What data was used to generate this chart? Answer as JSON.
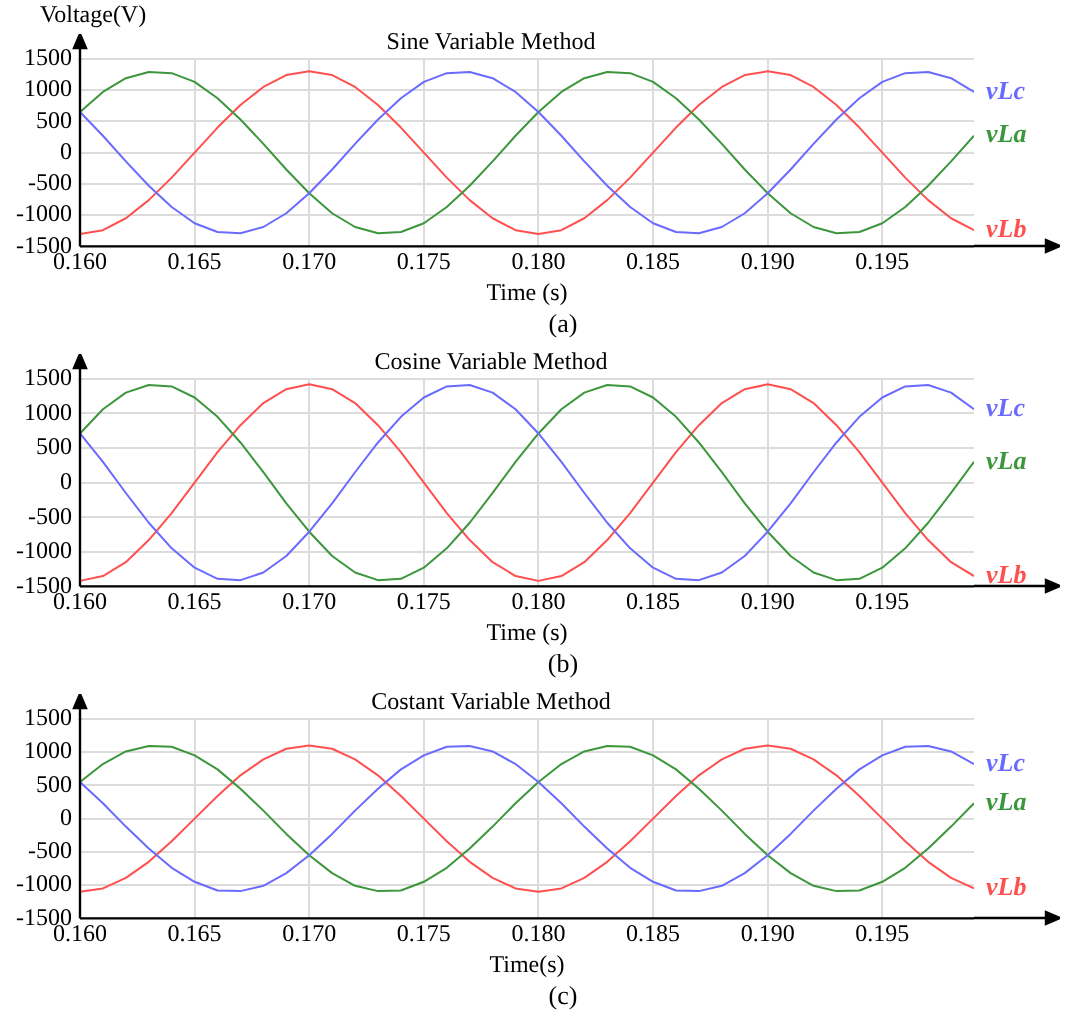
{
  "chart_data": [
    {
      "type": "line",
      "title": "Sine Variable Method",
      "xlabel": "Time (s)",
      "ylabel": "Voltage(V)",
      "annotations": [
        "(a)"
      ],
      "x": [
        0.16,
        0.161,
        0.162,
        0.163,
        0.164,
        0.165,
        0.166,
        0.167,
        0.168,
        0.169,
        0.17,
        0.171,
        0.172,
        0.173,
        0.174,
        0.175,
        0.176,
        0.177,
        0.178,
        0.179,
        0.18,
        0.181,
        0.182,
        0.183,
        0.184,
        0.185,
        0.186,
        0.187,
        0.188,
        0.189,
        0.19,
        0.191,
        0.192,
        0.193,
        0.194,
        0.195,
        0.196,
        0.197,
        0.198,
        0.199
      ],
      "series": [
        {
          "name": "vLc",
          "color": "#6a6aff",
          "values": [
            650,
            270,
            -140,
            -530,
            -870,
            -1130,
            -1270,
            -1290,
            -1190,
            -970,
            -650,
            -270,
            140,
            530,
            870,
            1130,
            1270,
            1290,
            1190,
            970,
            650,
            270,
            -140,
            -530,
            -870,
            -1130,
            -1270,
            -1290,
            -1190,
            -970,
            -650,
            -270,
            140,
            530,
            870,
            1130,
            1270,
            1290,
            1190,
            970
          ]
        },
        {
          "name": "vLa",
          "color": "#3c963c",
          "values": [
            650,
            970,
            1190,
            1290,
            1270,
            1130,
            870,
            530,
            140,
            -270,
            -650,
            -970,
            -1190,
            -1290,
            -1270,
            -1130,
            -870,
            -530,
            -140,
            270,
            650,
            970,
            1190,
            1290,
            1270,
            1130,
            870,
            530,
            140,
            -270,
            -650,
            -970,
            -1190,
            -1290,
            -1270,
            -1130,
            -870,
            -530,
            -140,
            270
          ]
        },
        {
          "name": "vLb",
          "color": "#ff5050",
          "values": [
            -1300,
            -1240,
            -1050,
            -760,
            -400,
            0,
            400,
            760,
            1050,
            1240,
            1300,
            1240,
            1050,
            760,
            400,
            0,
            -400,
            -760,
            -1050,
            -1240,
            -1300,
            -1240,
            -1050,
            -760,
            -400,
            0,
            400,
            760,
            1050,
            1240,
            1300,
            1240,
            1050,
            760,
            400,
            0,
            -400,
            -760,
            -1050,
            -1240
          ]
        }
      ],
      "xlim": [
        0.16,
        0.199
      ],
      "xticks": [
        {
          "value": 0.16,
          "label": "0.160"
        },
        {
          "value": 0.165,
          "label": "0.165"
        },
        {
          "value": 0.17,
          "label": "0.170"
        },
        {
          "value": 0.175,
          "label": "0.175"
        },
        {
          "value": 0.18,
          "label": "0.180"
        },
        {
          "value": 0.185,
          "label": "0.185"
        },
        {
          "value": 0.19,
          "label": "0.190"
        },
        {
          "value": 0.195,
          "label": "0.195"
        }
      ],
      "ylim": [
        -1500,
        1500
      ],
      "yticks": [
        -1500,
        -1000,
        -500,
        0,
        500,
        1000,
        1500
      ],
      "grid": true,
      "marker": "none",
      "line_style": "solid"
    },
    {
      "type": "line",
      "title": "Cosine Variable Method",
      "xlabel": "Time (s)",
      "annotations": [
        "(b)"
      ],
      "x": [
        0.16,
        0.161,
        0.162,
        0.163,
        0.164,
        0.165,
        0.166,
        0.167,
        0.168,
        0.169,
        0.17,
        0.171,
        0.172,
        0.173,
        0.174,
        0.175,
        0.176,
        0.177,
        0.178,
        0.179,
        0.18,
        0.181,
        0.182,
        0.183,
        0.184,
        0.185,
        0.186,
        0.187,
        0.188,
        0.189,
        0.19,
        0.191,
        0.192,
        0.193,
        0.194,
        0.195,
        0.196,
        0.197,
        0.198,
        0.199
      ],
      "series": [
        {
          "name": "vLc",
          "color": "#6a6aff",
          "values": [
            710,
            300,
            -150,
            -580,
            -950,
            -1230,
            -1390,
            -1410,
            -1300,
            -1060,
            -710,
            -300,
            150,
            580,
            950,
            1230,
            1390,
            1410,
            1300,
            1060,
            710,
            300,
            -150,
            -580,
            -950,
            -1230,
            -1390,
            -1410,
            -1300,
            -1060,
            -710,
            -300,
            150,
            580,
            950,
            1230,
            1390,
            1410,
            1300,
            1060
          ]
        },
        {
          "name": "vLa",
          "color": "#3c963c",
          "values": [
            710,
            1060,
            1300,
            1410,
            1390,
            1230,
            950,
            580,
            150,
            -300,
            -710,
            -1060,
            -1300,
            -1410,
            -1390,
            -1230,
            -950,
            -580,
            -150,
            300,
            710,
            1060,
            1300,
            1410,
            1390,
            1230,
            950,
            580,
            150,
            -300,
            -710,
            -1060,
            -1300,
            -1410,
            -1390,
            -1230,
            -950,
            -580,
            -150,
            300
          ]
        },
        {
          "name": "vLb",
          "color": "#ff5050",
          "values": [
            -1420,
            -1350,
            -1150,
            -830,
            -440,
            0,
            440,
            830,
            1150,
            1350,
            1420,
            1350,
            1150,
            830,
            440,
            0,
            -440,
            -830,
            -1150,
            -1350,
            -1420,
            -1350,
            -1150,
            -830,
            -440,
            0,
            440,
            830,
            1150,
            1350,
            1420,
            1350,
            1150,
            830,
            440,
            0,
            -440,
            -830,
            -1150,
            -1350
          ]
        }
      ],
      "xlim": [
        0.16,
        0.199
      ],
      "xticks": [
        {
          "value": 0.16,
          "label": "0.160"
        },
        {
          "value": 0.165,
          "label": "0.165"
        },
        {
          "value": 0.17,
          "label": "0.170"
        },
        {
          "value": 0.175,
          "label": "0.175"
        },
        {
          "value": 0.18,
          "label": "0.180"
        },
        {
          "value": 0.185,
          "label": "0.185"
        },
        {
          "value": 0.19,
          "label": "0.190"
        },
        {
          "value": 0.195,
          "label": "0.195"
        }
      ],
      "ylim": [
        -1500,
        1500
      ],
      "yticks": [
        -1500,
        -1000,
        -500,
        0,
        500,
        1000,
        1500
      ],
      "grid": true,
      "marker": "none",
      "line_style": "solid"
    },
    {
      "type": "line",
      "title": "Costant Variable Method",
      "xlabel": "Time(s)",
      "annotations": [
        "(c)"
      ],
      "x": [
        0.16,
        0.161,
        0.162,
        0.163,
        0.164,
        0.165,
        0.166,
        0.167,
        0.168,
        0.169,
        0.17,
        0.171,
        0.172,
        0.173,
        0.174,
        0.175,
        0.176,
        0.177,
        0.178,
        0.179,
        0.18,
        0.181,
        0.182,
        0.183,
        0.184,
        0.185,
        0.186,
        0.187,
        0.188,
        0.189,
        0.19,
        0.191,
        0.192,
        0.193,
        0.194,
        0.195,
        0.196,
        0.197,
        0.198,
        0.199
      ],
      "series": [
        {
          "name": "vLc",
          "color": "#6a6aff",
          "values": [
            550,
            230,
            -120,
            -450,
            -740,
            -950,
            -1080,
            -1090,
            -1010,
            -820,
            -550,
            -230,
            120,
            450,
            740,
            950,
            1080,
            1090,
            1010,
            820,
            550,
            230,
            -120,
            -450,
            -740,
            -950,
            -1080,
            -1090,
            -1010,
            -820,
            -550,
            -230,
            120,
            450,
            740,
            950,
            1080,
            1090,
            1010,
            820
          ]
        },
        {
          "name": "vLa",
          "color": "#3c963c",
          "values": [
            550,
            820,
            1010,
            1090,
            1080,
            950,
            740,
            450,
            120,
            -230,
            -550,
            -820,
            -1010,
            -1090,
            -1080,
            -950,
            -740,
            -450,
            -120,
            230,
            550,
            820,
            1010,
            1090,
            1080,
            950,
            740,
            450,
            120,
            -230,
            -550,
            -820,
            -1010,
            -1090,
            -1080,
            -950,
            -740,
            -450,
            -120,
            230
          ]
        },
        {
          "name": "vLb",
          "color": "#ff5050",
          "values": [
            -1100,
            -1050,
            -890,
            -650,
            -340,
            0,
            340,
            650,
            890,
            1050,
            1100,
            1050,
            890,
            650,
            340,
            0,
            -340,
            -650,
            -890,
            -1050,
            -1100,
            -1050,
            -890,
            -650,
            -340,
            0,
            340,
            650,
            890,
            1050,
            1100,
            1050,
            890,
            650,
            340,
            0,
            -340,
            -650,
            -890,
            -1050
          ]
        }
      ],
      "xlim": [
        0.16,
        0.199
      ],
      "xticks": [
        {
          "value": 0.16,
          "label": "0.160"
        },
        {
          "value": 0.165,
          "label": "0.165"
        },
        {
          "value": 0.17,
          "label": "0.170"
        },
        {
          "value": 0.175,
          "label": "0.175"
        },
        {
          "value": 0.18,
          "label": "0.180"
        },
        {
          "value": 0.185,
          "label": "0.185"
        },
        {
          "value": 0.19,
          "label": "0.190"
        },
        {
          "value": 0.195,
          "label": "0.195"
        }
      ],
      "ylim": [
        -1500,
        1500
      ],
      "yticks": [
        -1500,
        -1000,
        -500,
        0,
        500,
        1000,
        1500
      ],
      "grid": true,
      "marker": "none",
      "line_style": "solid"
    }
  ]
}
